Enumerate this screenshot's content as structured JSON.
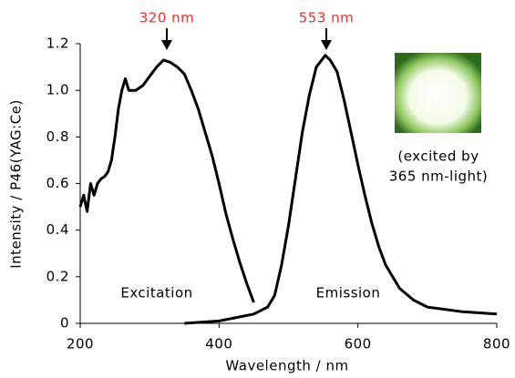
{
  "chart_data": {
    "type": "line",
    "x_label": "Wavelength / nm",
    "y_label": "Intensity / P46(YAG:Ce)",
    "xlim": [
      200,
      800
    ],
    "xticks": [
      200,
      400,
      600,
      800
    ],
    "ylim": [
      0,
      1.2
    ],
    "yticks": [
      0,
      0.2,
      0.4,
      0.6,
      0.8,
      {
        "value": 1,
        "label": "1.0"
      },
      1.2
    ],
    "series": [
      {
        "name": "Excitation",
        "color": "#000000",
        "x": [
          200,
          205,
          210,
          215,
          220,
          225,
          230,
          235,
          240,
          245,
          250,
          255,
          260,
          265,
          270,
          280,
          290,
          300,
          310,
          320,
          330,
          340,
          350,
          360,
          370,
          380,
          390,
          400,
          410,
          420,
          430,
          440,
          450
        ],
        "values": [
          0.5,
          0.55,
          0.48,
          0.6,
          0.55,
          0.6,
          0.62,
          0.63,
          0.65,
          0.7,
          0.8,
          0.92,
          1.0,
          1.05,
          1.0,
          1.0,
          1.02,
          1.06,
          1.1,
          1.13,
          1.12,
          1.1,
          1.07,
          1.0,
          0.92,
          0.82,
          0.72,
          0.6,
          0.47,
          0.36,
          0.26,
          0.17,
          0.09
        ]
      },
      {
        "name": "Emission",
        "color": "#000000",
        "x": [
          350,
          400,
          450,
          470,
          480,
          490,
          500,
          510,
          520,
          530,
          540,
          553,
          560,
          570,
          580,
          590,
          600,
          610,
          620,
          630,
          640,
          660,
          680,
          700,
          750,
          800
        ],
        "values": [
          0,
          0.01,
          0.04,
          0.07,
          0.12,
          0.25,
          0.42,
          0.62,
          0.82,
          0.98,
          1.1,
          1.15,
          1.13,
          1.08,
          0.96,
          0.82,
          0.68,
          0.55,
          0.43,
          0.33,
          0.25,
          0.15,
          0.1,
          0.07,
          0.05,
          0.04
        ]
      }
    ],
    "annotations": [
      "320 nm",
      "553 nm",
      "(excited by",
      "365 nm-light)"
    ]
  }
}
